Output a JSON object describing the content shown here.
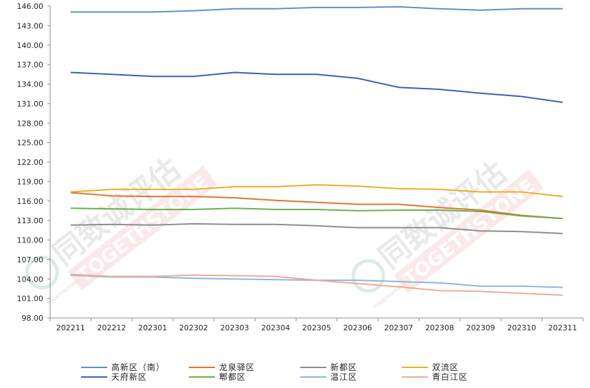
{
  "chart_data": {
    "type": "line",
    "categories": [
      "202211",
      "202212",
      "202301",
      "202302",
      "202303",
      "202304",
      "202305",
      "202306",
      "202307",
      "202308",
      "202309",
      "202310",
      "202311"
    ],
    "ylim": [
      98.0,
      146.0
    ],
    "yticks": [
      "98.00",
      "101.00",
      "104.00",
      "107.00",
      "110.00",
      "113.00",
      "116.00",
      "119.00",
      "122.00",
      "125.00",
      "128.00",
      "131.00",
      "134.00",
      "137.00",
      "140.00",
      "143.00",
      "146.00"
    ],
    "grid": false,
    "legend_position": "bottom",
    "series": [
      {
        "name": "高新区（南）",
        "color": "#5B8FC9",
        "values": [
          145.1,
          145.1,
          145.1,
          145.3,
          145.6,
          145.6,
          145.8,
          145.8,
          145.9,
          145.6,
          145.4,
          145.6,
          145.6
        ]
      },
      {
        "name": "天府新区",
        "color": "#3A5FB0",
        "values": [
          135.8,
          135.5,
          135.2,
          135.2,
          135.8,
          135.5,
          135.5,
          134.9,
          133.5,
          133.2,
          132.6,
          132.1,
          131.2
        ]
      },
      {
        "name": "龙泉驿区",
        "color": "#E0742E",
        "values": [
          117.3,
          116.8,
          116.7,
          116.7,
          116.5,
          116.1,
          115.8,
          115.5,
          115.5,
          115.0,
          114.6,
          113.8,
          113.3
        ]
      },
      {
        "name": "郫都区",
        "color": "#6BAF45",
        "values": [
          114.9,
          114.8,
          114.7,
          114.7,
          114.9,
          114.7,
          114.7,
          114.5,
          114.6,
          114.6,
          114.4,
          113.7,
          113.3
        ]
      },
      {
        "name": "新都区",
        "color": "#8C8C8C",
        "values": [
          112.3,
          112.4,
          112.3,
          112.5,
          112.4,
          112.4,
          112.2,
          111.9,
          111.9,
          111.9,
          111.4,
          111.3,
          111.0
        ]
      },
      {
        "name": "温江区",
        "color": "#8DB4E2",
        "values": [
          104.6,
          104.3,
          104.3,
          104.1,
          104.0,
          103.9,
          103.8,
          103.8,
          103.6,
          103.4,
          102.9,
          102.9,
          102.7
        ]
      },
      {
        "name": "双流区",
        "color": "#E8B020",
        "values": [
          117.4,
          117.8,
          117.8,
          117.8,
          118.2,
          118.2,
          118.5,
          118.3,
          117.9,
          117.8,
          117.4,
          117.4,
          116.7
        ]
      },
      {
        "name": "青白江区",
        "color": "#F2A994",
        "values": [
          104.7,
          104.4,
          104.4,
          104.6,
          104.5,
          104.4,
          103.8,
          103.3,
          102.8,
          102.2,
          102.1,
          101.8,
          101.5
        ]
      }
    ],
    "legend_rows": [
      [
        "高新区（南）",
        "龙泉驿区",
        "新都区",
        "双流区"
      ],
      [
        "天府新区",
        "郫都区",
        "温江区",
        "青白江区"
      ]
    ]
  },
  "watermark": {
    "cn": "同致诚评估",
    "en": "TOGETHSTONE",
    "small": "TOGETHSTONE"
  }
}
